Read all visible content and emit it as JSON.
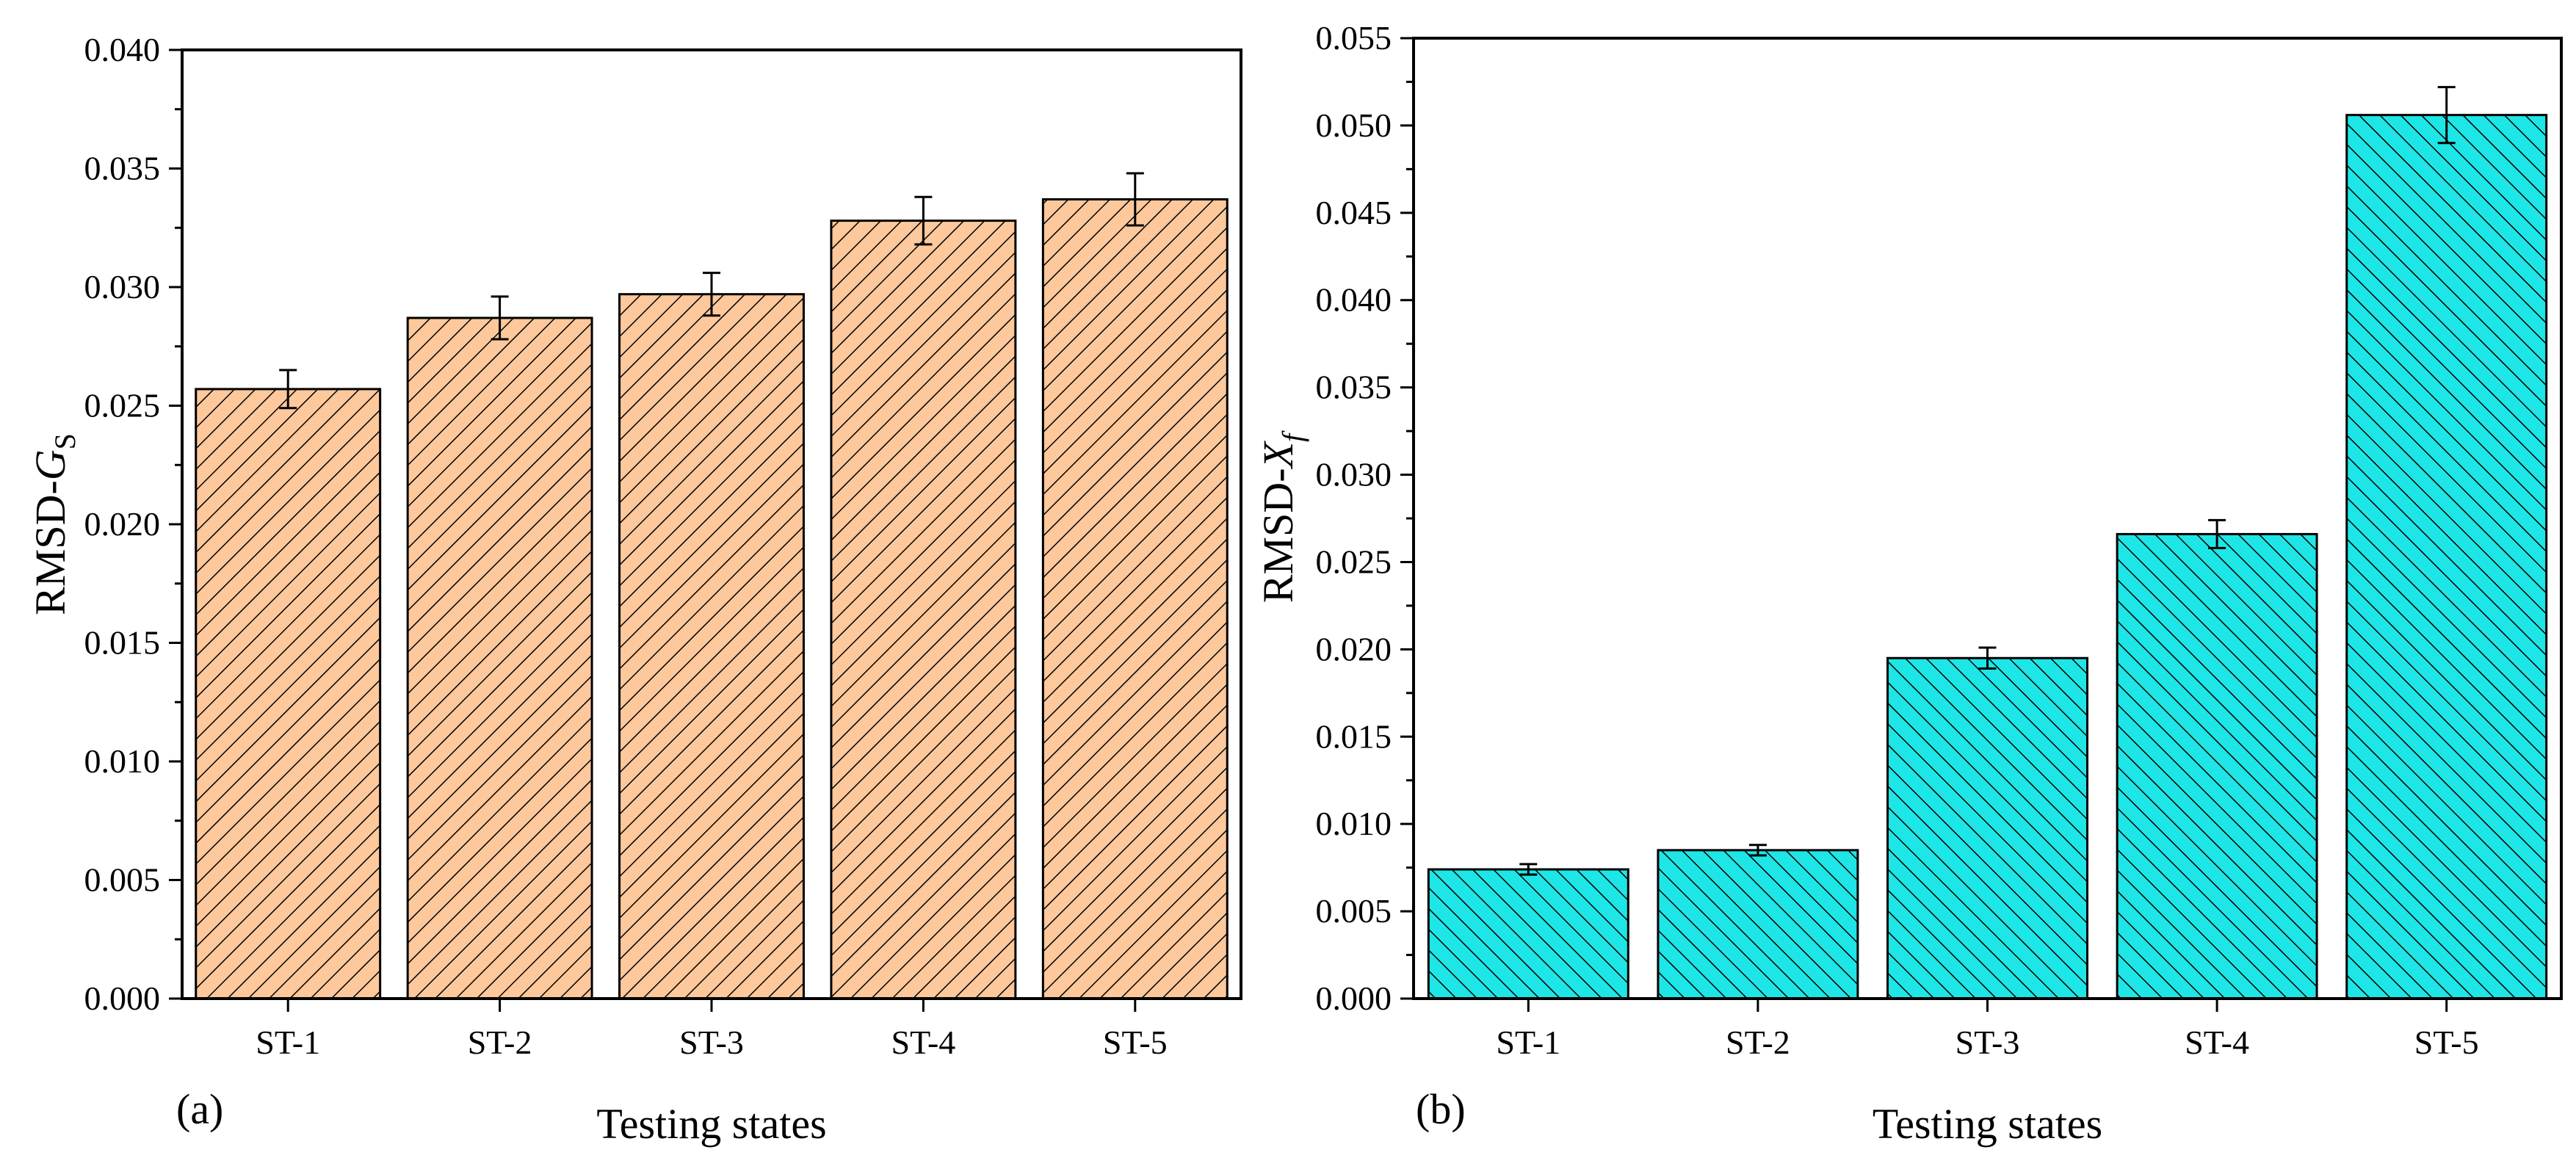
{
  "chart_data": [
    {
      "type": "bar",
      "panel_label": "(a)",
      "categories": [
        "ST-1",
        "ST-2",
        "ST-3",
        "ST-4",
        "ST-5"
      ],
      "values": [
        0.0257,
        0.0287,
        0.0297,
        0.0328,
        0.0337
      ],
      "errors": [
        0.0008,
        0.0009,
        0.0009,
        0.001,
        0.0011
      ],
      "xlabel": "Testing states",
      "ylabel_prefix": "RMSD-",
      "ylabel_var": "G",
      "ylabel_sub": "S",
      "ylim": [
        0,
        0.04
      ],
      "yticks": [
        "0.000",
        "0.005",
        "0.010",
        "0.015",
        "0.020",
        "0.025",
        "0.030",
        "0.035",
        "0.040"
      ],
      "bar_color": "#FDC89B",
      "hatch": "diagonal-right",
      "grid": false
    },
    {
      "type": "bar",
      "panel_label": "(b)",
      "categories": [
        "ST-1",
        "ST-2",
        "ST-3",
        "ST-4",
        "ST-5"
      ],
      "values": [
        0.0074,
        0.0085,
        0.0195,
        0.0266,
        0.0506
      ],
      "errors": [
        0.0003,
        0.0003,
        0.0006,
        0.0008,
        0.0016
      ],
      "xlabel": "Testing states",
      "ylabel_prefix": "RMSD-",
      "ylabel_var": "X",
      "ylabel_sub": "f",
      "ylim": [
        0,
        0.055
      ],
      "yticks": [
        "0.000",
        "0.005",
        "0.010",
        "0.015",
        "0.020",
        "0.025",
        "0.030",
        "0.035",
        "0.040",
        "0.045",
        "0.050",
        "0.055"
      ],
      "bar_color": "#1EE6E6",
      "hatch": "diagonal-left",
      "grid": false
    }
  ]
}
